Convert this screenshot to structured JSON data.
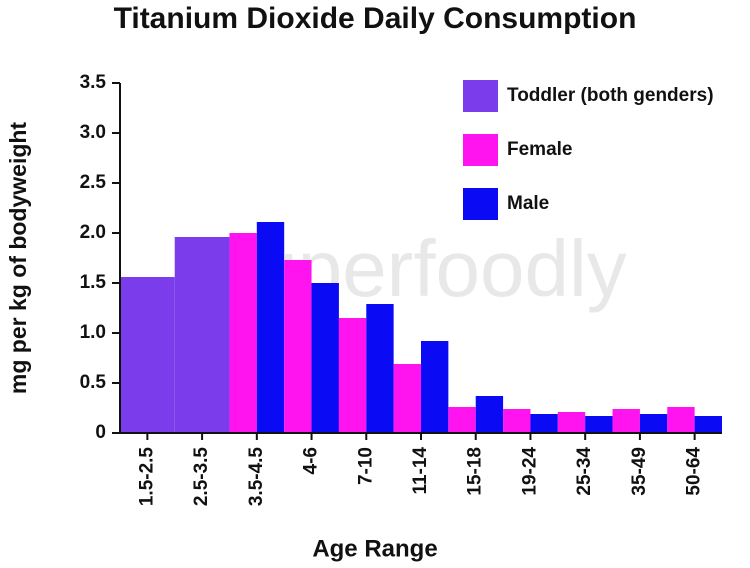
{
  "chart_data": {
    "type": "bar",
    "title": "Titanium Dioxide Daily Consumption",
    "x_label": "Age Range",
    "y_label": "mg per kg of bodyweight",
    "watermark": "superfoodly",
    "categories": [
      "1.5-2.5",
      "2.5-3.5",
      "3.5-4.5",
      "4-6",
      "7-10",
      "11-14",
      "15-18",
      "19-24",
      "25-34",
      "35-49",
      "50-64"
    ],
    "series": [
      {
        "name": "Toddler (both genders)",
        "color": "#7b3cec",
        "values": [
          1.56,
          1.96,
          null,
          null,
          null,
          null,
          null,
          null,
          null,
          null,
          null
        ]
      },
      {
        "name": "Female",
        "color": "#ff14f0",
        "values": [
          null,
          null,
          2.0,
          1.73,
          1.15,
          0.69,
          0.26,
          0.24,
          0.21,
          0.24,
          0.26
        ]
      },
      {
        "name": "Male",
        "color": "#0a0af5",
        "values": [
          null,
          null,
          2.11,
          1.5,
          1.29,
          0.92,
          0.37,
          0.19,
          0.17,
          0.19,
          0.17
        ]
      }
    ],
    "ylim": [
      0,
      3.5
    ],
    "yticks": [
      0,
      0.5,
      {
        "value": 1,
        "label": "1.0"
      },
      1.5,
      {
        "value": 2,
        "label": "2.0"
      },
      2.5,
      {
        "value": 3,
        "label": "3.0"
      },
      3.5
    ],
    "grid": false,
    "legend_position": "upper right"
  }
}
